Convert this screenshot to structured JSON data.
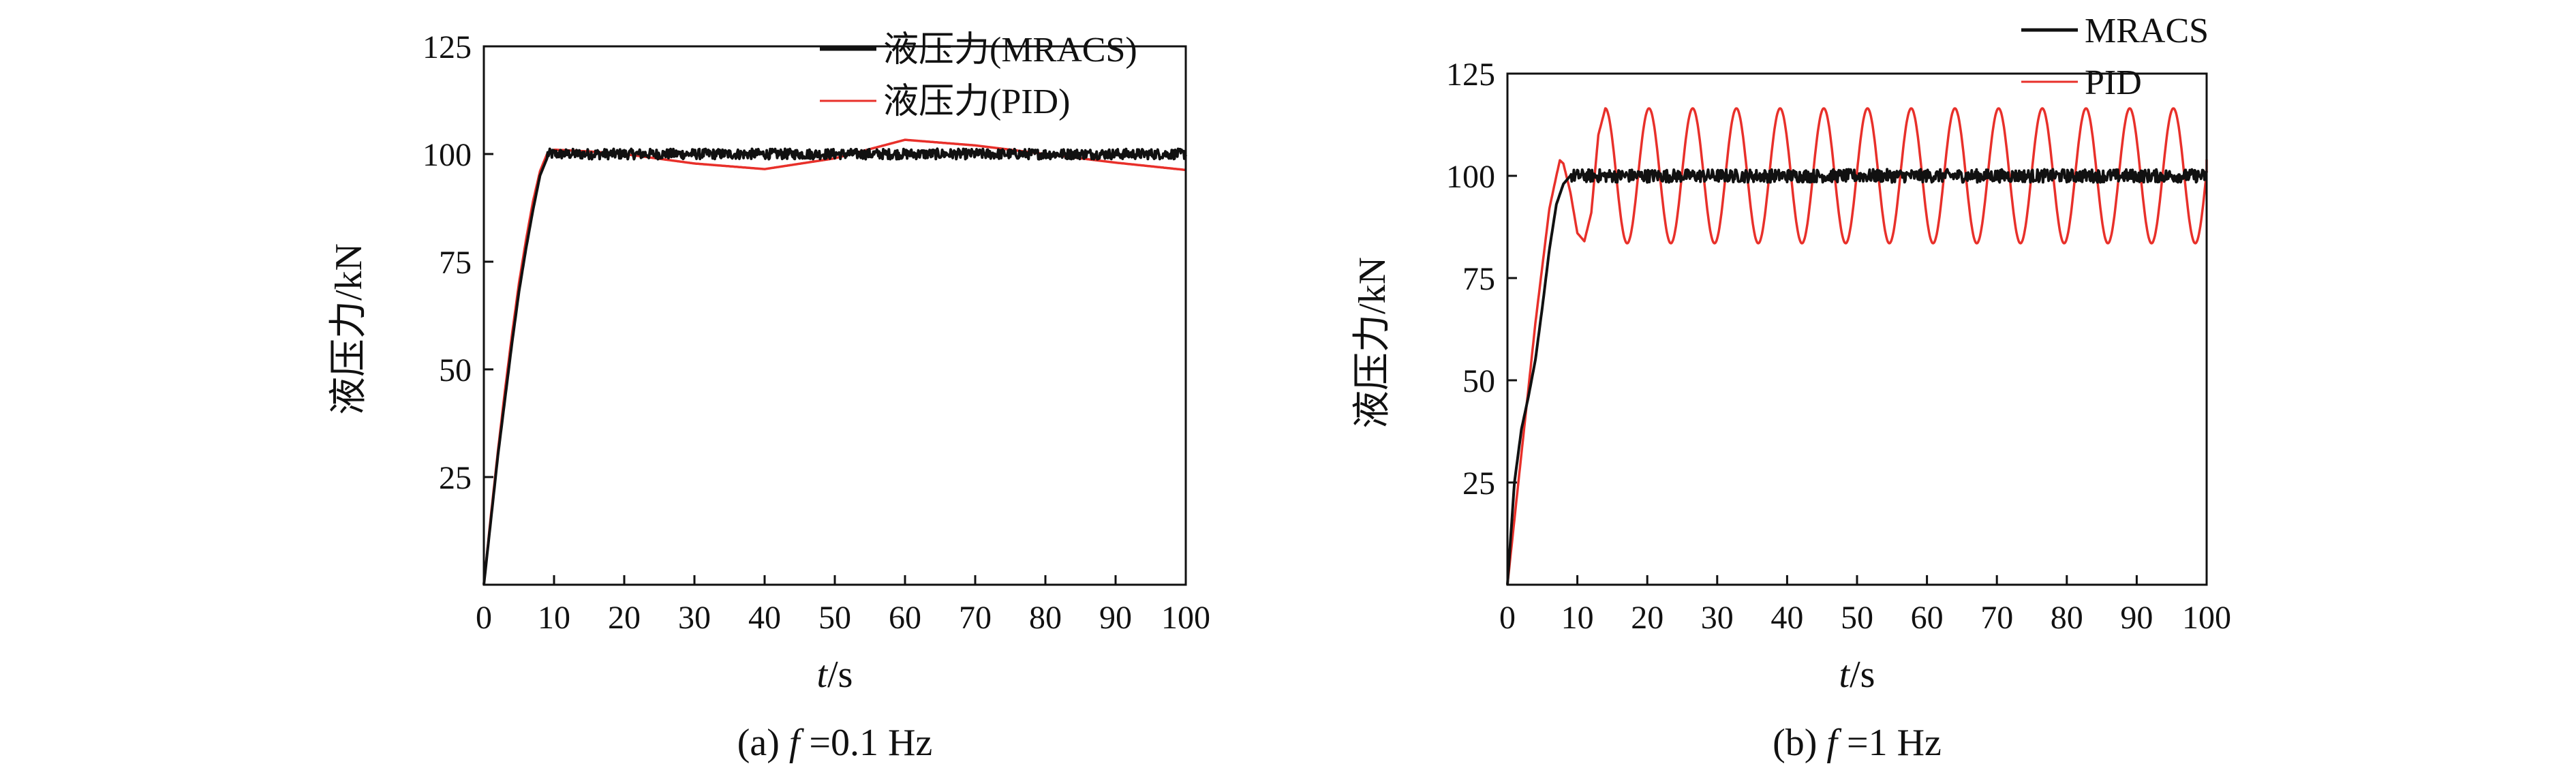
{
  "chart_data": [
    {
      "type": "line",
      "subfigure": "a",
      "caption_prefix": "(a) ",
      "caption_var": "f",
      "caption_rest": " =0.1 Hz",
      "xlabel_var": "t",
      "xlabel_unit": "/s",
      "ylabel": "液压力/kN",
      "xlim": [
        0,
        100
      ],
      "ylim": [
        0,
        125
      ],
      "xticks": [
        0,
        10,
        20,
        30,
        40,
        50,
        60,
        70,
        80,
        90,
        100
      ],
      "yticks": [
        25,
        50,
        75,
        100,
        125
      ],
      "legend_position": "top-right",
      "series": [
        {
          "name": "液压力(MRACS)",
          "color": "#111111",
          "points": [
            [
              0,
              0
            ],
            [
              1,
              15
            ],
            [
              2,
              30
            ],
            [
              3,
              43
            ],
            [
              4,
              56
            ],
            [
              5,
              68
            ],
            [
              6,
              78
            ],
            [
              7,
              87
            ],
            [
              8,
              95
            ],
            [
              9,
              99
            ],
            [
              10,
              100
            ],
            [
              100,
              100
            ]
          ],
          "steady_value": 100,
          "noise_amplitude": 1.2
        },
        {
          "name": "液压力(PID)",
          "color": "#e8302a",
          "points": [
            [
              0,
              0
            ],
            [
              1,
              16
            ],
            [
              2,
              31
            ],
            [
              3,
              45
            ],
            [
              4,
              58
            ],
            [
              5,
              70
            ],
            [
              6,
              80
            ],
            [
              7,
              89
            ],
            [
              8,
              96
            ],
            [
              9,
              100
            ],
            [
              10,
              101
            ],
            [
              15,
              100.6
            ],
            [
              20,
              100
            ],
            [
              30,
              97.8
            ],
            [
              40,
              96.5
            ],
            [
              50,
              99
            ],
            [
              60,
              103.3
            ],
            [
              70,
              102
            ],
            [
              80,
              100
            ],
            [
              90,
              98
            ],
            [
              100,
              96.3
            ]
          ]
        }
      ]
    },
    {
      "type": "line",
      "subfigure": "b",
      "caption_prefix": "(b) ",
      "caption_var": "f",
      "caption_rest": " =1 Hz",
      "xlabel_var": "t",
      "xlabel_unit": "/s",
      "ylabel": "液压力/kN",
      "xlim": [
        0,
        100
      ],
      "ylim": [
        0,
        125
      ],
      "xticks": [
        0,
        10,
        20,
        30,
        40,
        50,
        60,
        70,
        80,
        90,
        100
      ],
      "yticks": [
        25,
        50,
        75,
        100,
        125
      ],
      "legend_position": "top-right",
      "series": [
        {
          "name": "MRACS",
          "color": "#111111",
          "points": [
            [
              0,
              0
            ],
            [
              1,
              25
            ],
            [
              2,
              38
            ],
            [
              3,
              46
            ],
            [
              4,
              55
            ],
            [
              5,
              68
            ],
            [
              6,
              82
            ],
            [
              7,
              93
            ],
            [
              8,
              98
            ],
            [
              9,
              100
            ],
            [
              100,
              100
            ]
          ],
          "steady_value": 100,
          "noise_amplitude": 1.6
        },
        {
          "name": "PID",
          "color": "#e8302a",
          "points": [
            [
              0,
              0
            ],
            [
              1,
              16
            ],
            [
              2,
              32
            ],
            [
              3,
              48
            ],
            [
              4,
              64
            ],
            [
              5,
              78
            ],
            [
              6,
              92
            ],
            [
              7,
              100
            ],
            [
              7.5,
              103.8
            ],
            [
              8,
              103
            ],
            [
              9,
              96
            ],
            [
              10,
              86
            ],
            [
              11,
              84
            ],
            [
              12,
              91
            ],
            [
              13,
              110
            ],
            [
              14,
              116.5
            ]
          ],
          "oscillation": {
            "center": 100,
            "amplitude": 16.5,
            "period": 6.25,
            "start": 14,
            "peak_at": 14
          },
          "end_value_at_100": 104
        }
      ]
    }
  ]
}
